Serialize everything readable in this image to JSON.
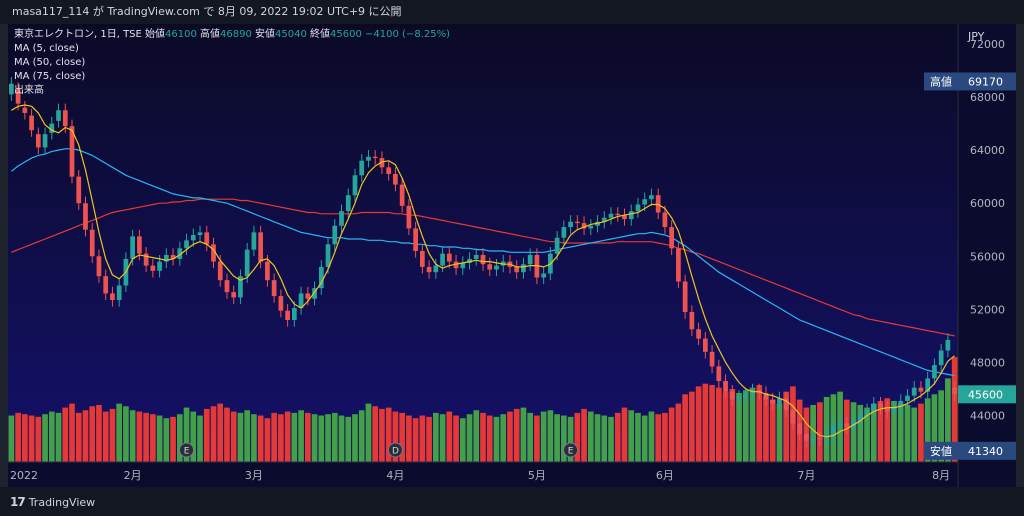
{
  "header": {
    "attribution": "masa117_114 が TradingView.com で 8月 09, 2022 19:02 UTC+9 に公開"
  },
  "legend": {
    "symbol": "東京エレクトロン, 1日, TSE",
    "open_label": "始値",
    "open": "46100",
    "high_label": "高値",
    "high": "46890",
    "low_label": "安値",
    "low": "45040",
    "close_label": "終値",
    "close": "45600",
    "change": "−4100 (−8.25%)",
    "ma5": "MA (5, close)",
    "ma50": "MA (50, close)",
    "ma75": "MA (75, close)",
    "volume": "出来高"
  },
  "footer": {
    "logo_text": "TradingView"
  },
  "colors": {
    "up": "#26a69a",
    "down": "#ef5350",
    "up_vol": "#43a047",
    "down_vol": "#e53935",
    "ma5": "#f0c419",
    "ma50": "#29b6f6",
    "ma75": "#e53935"
  },
  "chart_data": {
    "type": "candlestick",
    "currency": "JPY",
    "y_ticks": [
      72000,
      68000,
      64000,
      60000,
      56000,
      52000,
      48000,
      44000
    ],
    "ylim": [
      40500,
      73500
    ],
    "x_labels": [
      "2022",
      "2月",
      "3月",
      "4月",
      "5月",
      "6月",
      "7月",
      "8月"
    ],
    "x_label_positions": [
      0,
      18,
      36,
      57,
      78,
      97,
      118,
      138
    ],
    "price_badges": [
      {
        "label": "高値",
        "value": "69170",
        "price": 69170
      },
      {
        "label": "",
        "value": "45600",
        "price": 45600
      },
      {
        "label": "安値",
        "value": "41340",
        "price": 41340
      }
    ],
    "event_markers": [
      {
        "letter": "E",
        "index": 26
      },
      {
        "letter": "D",
        "index": 57
      },
      {
        "letter": "E",
        "index": 83
      }
    ],
    "closes": [
      69000,
      67500,
      66800,
      65500,
      64200,
      65200,
      66000,
      67000,
      65800,
      62000,
      60000,
      58000,
      56000,
      54500,
      53200,
      52700,
      53800,
      55800,
      57500,
      56200,
      55300,
      54900,
      55600,
      56100,
      55800,
      56600,
      57200,
      57600,
      57800,
      56900,
      55600,
      54200,
      53300,
      52900,
      54500,
      56500,
      57800,
      55600,
      54200,
      53000,
      51900,
      51200,
      52100,
      53200,
      52800,
      53600,
      55200,
      56900,
      58300,
      59400,
      60600,
      62100,
      63200,
      63500,
      63400,
      62700,
      62200,
      61400,
      59800,
      58100,
      56400,
      55200,
      54800,
      55300,
      56200,
      55600,
      55100,
      55500,
      55800,
      56100,
      55400,
      55000,
      55300,
      55600,
      55200,
      54800,
      55400,
      56100,
      54400,
      54700,
      56200,
      57400,
      58200,
      58600,
      58500,
      58100,
      58300,
      58600,
      58900,
      59200,
      59100,
      58800,
      59400,
      59900,
      60300,
      60600,
      59300,
      58200,
      56600,
      54100,
      51800,
      50500,
      49800,
      48800,
      47700,
      46600,
      45800,
      45200,
      45400,
      45600,
      45900,
      45700,
      45200,
      44900,
      45300,
      44400,
      43400,
      42600,
      42100,
      42300,
      42200,
      42500,
      43200,
      43400,
      43100,
      43600,
      44100,
      44400,
      44900,
      44600,
      44300,
      44600,
      45100,
      45500,
      46100,
      45800,
      46800,
      47800,
      48900,
      49700,
      45600
    ],
    "opens": [
      68200,
      68600,
      67200,
      66600,
      65200,
      64200,
      65300,
      66200,
      67000,
      65800,
      62000,
      60000,
      58000,
      56000,
      54500,
      53200,
      52700,
      53800,
      55800,
      57500,
      56200,
      55300,
      54900,
      55600,
      56100,
      55800,
      56600,
      57200,
      57600,
      57800,
      56900,
      55600,
      54200,
      53300,
      52900,
      54500,
      56500,
      57800,
      55600,
      54200,
      53000,
      51900,
      51200,
      52100,
      53200,
      52800,
      53600,
      55200,
      56900,
      58300,
      59400,
      60600,
      62100,
      63200,
      63500,
      63400,
      62700,
      62200,
      61400,
      59800,
      58100,
      56400,
      55200,
      54800,
      55300,
      56200,
      55600,
      55100,
      55500,
      55800,
      56100,
      55400,
      55000,
      55300,
      55600,
      55200,
      54800,
      55400,
      56100,
      54400,
      54700,
      56200,
      57400,
      58200,
      58600,
      58500,
      58100,
      58300,
      58600,
      58900,
      59200,
      59100,
      58800,
      59400,
      59900,
      60300,
      60600,
      59300,
      58200,
      56600,
      54100,
      51800,
      50500,
      49800,
      48800,
      47700,
      46600,
      45800,
      45200,
      45400,
      45600,
      45900,
      45700,
      45200,
      44900,
      45300,
      44400,
      43400,
      42600,
      42100,
      42300,
      42200,
      42500,
      43200,
      43400,
      43100,
      43600,
      44100,
      44400,
      44900,
      44600,
      44300,
      44600,
      45100,
      45500,
      46100,
      45800,
      46800,
      47800,
      48900,
      46100
    ],
    "volumes": [
      44000,
      44200,
      44100,
      44000,
      43900,
      44100,
      44300,
      44200,
      44600,
      44900,
      44200,
      44400,
      44700,
      44800,
      44300,
      44500,
      44900,
      44700,
      44400,
      44300,
      44200,
      44100,
      44000,
      43800,
      43900,
      44100,
      44600,
      44300,
      44000,
      44500,
      44700,
      44900,
      44600,
      44300,
      44200,
      44400,
      44100,
      44000,
      43800,
      44200,
      44100,
      44300,
      44200,
      44400,
      44200,
      44100,
      44000,
      44100,
      44200,
      44000,
      43900,
      44100,
      44400,
      44900,
      44700,
      44500,
      44600,
      44300,
      44200,
      44000,
      43800,
      44000,
      43900,
      44200,
      44100,
      44300,
      44000,
      43800,
      44100,
      44400,
      44200,
      44000,
      43900,
      44100,
      44300,
      44500,
      44600,
      44200,
      44000,
      44300,
      44400,
      44100,
      44000,
      43900,
      44200,
      44500,
      44300,
      44100,
      44000,
      43900,
      44200,
      44600,
      44400,
      44200,
      44000,
      44300,
      44100,
      44200,
      44600,
      44900,
      45600,
      45800,
      46200,
      46400,
      46300,
      46100,
      45800,
      46000,
      45700,
      45900,
      46100,
      46300,
      45500,
      45200,
      44900,
      45800,
      46200,
      45200,
      44600,
      44800,
      45000,
      45400,
      45600,
      45800,
      45200,
      45000,
      44800,
      44600,
      44900,
      45100,
      45300,
      45100,
      44900,
      44800,
      44600,
      44900,
      45300,
      45600,
      45900,
      46800,
      48400
    ],
    "ma5": [
      67000,
      67300,
      67400,
      67300,
      66800,
      65900,
      65500,
      65300,
      65700,
      65500,
      64400,
      62500,
      60200,
      57800,
      55800,
      54600,
      54300,
      54800,
      55800,
      56100,
      56000,
      55900,
      55800,
      55700,
      55800,
      56100,
      56500,
      56900,
      57100,
      56900,
      56500,
      55700,
      55100,
      54500,
      54200,
      54400,
      55000,
      55700,
      55800,
      55300,
      54300,
      53100,
      52400,
      52100,
      52600,
      53300,
      54000,
      55000,
      56300,
      57700,
      58800,
      60000,
      61400,
      62300,
      62800,
      63100,
      63200,
      62900,
      61900,
      60600,
      59000,
      57500,
      56200,
      55400,
      55100,
      55300,
      55400,
      55500,
      55600,
      55700,
      55600,
      55600,
      55500,
      55400,
      55400,
      55200,
      55200,
      55300,
      55300,
      55200,
      55400,
      56000,
      56800,
      57600,
      58000,
      58200,
      58400,
      58500,
      58600,
      58800,
      59000,
      59100,
      59200,
      59300,
      59600,
      59900,
      59900,
      59600,
      58900,
      57900,
      56300,
      54500,
      52800,
      51300,
      50000,
      49000,
      48000,
      47200,
      46500,
      46000,
      45800,
      45800,
      45600,
      45500,
      45300,
      45100,
      44700,
      44100,
      43400,
      42900,
      42500,
      42400,
      42500,
      42800,
      43000,
      43300,
      43600,
      44000,
      44300,
      44500,
      44600,
      44600,
      44700,
      44900,
      45200,
      45500,
      45900,
      46400,
      47200,
      48100,
      48500
    ],
    "ma50": [
      62400,
      62800,
      63100,
      63400,
      63600,
      63700,
      63900,
      64000,
      64100,
      64100,
      64000,
      63800,
      63600,
      63300,
      63000,
      62700,
      62400,
      62100,
      61900,
      61700,
      61500,
      61300,
      61100,
      60900,
      60700,
      60600,
      60500,
      60400,
      60400,
      60300,
      60200,
      60100,
      60000,
      59800,
      59600,
      59400,
      59200,
      59000,
      58800,
      58600,
      58400,
      58200,
      58000,
      57800,
      57700,
      57600,
      57500,
      57400,
      57400,
      57400,
      57300,
      57300,
      57300,
      57200,
      57200,
      57200,
      57100,
      57100,
      57000,
      57000,
      56900,
      56900,
      56800,
      56800,
      56700,
      56700,
      56700,
      56600,
      56600,
      56500,
      56500,
      56400,
      56400,
      56400,
      56300,
      56300,
      56300,
      56300,
      56300,
      56300,
      56400,
      56500,
      56600,
      56700,
      56800,
      56900,
      57000,
      57100,
      57200,
      57300,
      57400,
      57500,
      57600,
      57700,
      57700,
      57800,
      57700,
      57600,
      57400,
      57100,
      56800,
      56400,
      56000,
      55600,
      55200,
      54800,
      54500,
      54200,
      53900,
      53600,
      53300,
      53000,
      52700,
      52400,
      52100,
      51800,
      51500,
      51200,
      51000,
      50800,
      50600,
      50400,
      50200,
      50000,
      49800,
      49600,
      49400,
      49200,
      49000,
      48800,
      48600,
      48400,
      48200,
      48000,
      47800,
      47600,
      47400,
      47300,
      47200,
      47100,
      47000
    ],
    "ma75": [
      56300,
      56500,
      56700,
      56900,
      57100,
      57300,
      57500,
      57700,
      57900,
      58100,
      58300,
      58500,
      58700,
      58900,
      59100,
      59300,
      59400,
      59500,
      59600,
      59700,
      59800,
      59900,
      60000,
      60000,
      60100,
      60100,
      60200,
      60200,
      60300,
      60300,
      60300,
      60300,
      60300,
      60300,
      60200,
      60200,
      60100,
      60000,
      59900,
      59800,
      59700,
      59600,
      59500,
      59400,
      59300,
      59300,
      59200,
      59200,
      59200,
      59200,
      59200,
      59200,
      59300,
      59300,
      59300,
      59300,
      59300,
      59200,
      59200,
      59100,
      59100,
      59000,
      58900,
      58800,
      58700,
      58600,
      58500,
      58400,
      58300,
      58200,
      58100,
      58000,
      57900,
      57800,
      57700,
      57600,
      57500,
      57400,
      57300,
      57200,
      57100,
      57100,
      57000,
      57000,
      57000,
      57000,
      57000,
      57000,
      57000,
      57000,
      57100,
      57100,
      57100,
      57100,
      57100,
      57100,
      57000,
      56900,
      56800,
      56600,
      56500,
      56300,
      56200,
      56000,
      55800,
      55600,
      55400,
      55200,
      55000,
      54800,
      54600,
      54400,
      54200,
      54000,
      53800,
      53600,
      53400,
      53200,
      53000,
      52800,
      52600,
      52400,
      52200,
      52000,
      51800,
      51600,
      51500,
      51300,
      51200,
      51100,
      51000,
      50900,
      50800,
      50700,
      50600,
      50500,
      50400,
      50300,
      50200,
      50100,
      50000
    ]
  }
}
